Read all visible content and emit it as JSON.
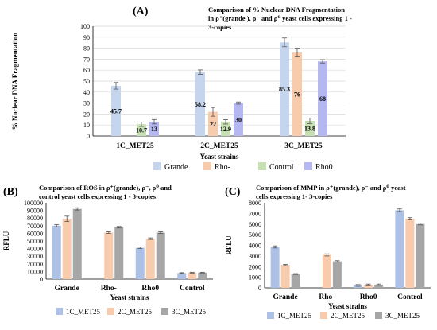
{
  "colors": {
    "grande": "#c5d5ee",
    "rho_minus": "#f8cbad",
    "control": "#c6e0b4",
    "rho0": "#b4b7f0",
    "met1": "#adc0e6",
    "met2": "#f8cbad",
    "met3": "#a6a6a6"
  },
  "chart_data": [
    {
      "id": "A",
      "type": "bar",
      "panel_label": "(A)",
      "title_lines": [
        "Comparison of % Nuclear DNA Fragmentation",
        "in ρ⁺(grande ), ρ⁻ and ρ⁰ yeast cells expressing 1 -",
        "3-copies"
      ],
      "categories": [
        "1C_MET25",
        "2C_MET25",
        "3C_MET25"
      ],
      "series": [
        {
          "name": "Grande",
          "values": [
            45.7,
            58.2,
            85.3
          ],
          "errors": [
            3,
            2,
            4
          ]
        },
        {
          "name": "Rho-",
          "values": [
            null,
            22,
            76
          ],
          "errors": [
            0,
            4,
            4
          ]
        },
        {
          "name": "Control",
          "values": [
            10.7,
            12.9,
            13.8
          ],
          "errors": [
            2,
            2,
            2.5
          ]
        },
        {
          "name": "Rho0",
          "values": [
            13,
            30,
            68
          ],
          "errors": [
            2,
            1,
            1.5
          ]
        }
      ],
      "data_labels": [
        [
          "45.7",
          "",
          "10.7",
          "13"
        ],
        [
          "58.2",
          "22",
          "12.9",
          "30"
        ],
        [
          "85.3",
          "76",
          "13.8",
          "68"
        ]
      ],
      "ylabel": "% Nuclear DNA Fragmentation",
      "xlabel": "Yeast strains",
      "ylim": [
        0,
        100
      ],
      "yticks": [
        "0",
        "10",
        "20",
        "30",
        "40",
        "50",
        "60",
        "70",
        "80",
        "90",
        "100"
      ],
      "legend_placement": "bottom"
    },
    {
      "id": "B",
      "type": "bar",
      "panel_label": "(B)",
      "title_lines": [
        "Comparison of ROS in  ρ⁺(grande), ρ⁻, ρ⁰ and",
        "control yeast cells expressing 1 - 3-copies"
      ],
      "categories": [
        "Grande",
        "Rho-",
        "Rho0",
        "Control"
      ],
      "series": [
        {
          "name": "1C_MET25",
          "values": [
            70000,
            null,
            41000,
            8000
          ],
          "errors": [
            1500,
            0,
            1000,
            500
          ]
        },
        {
          "name": "2C_MET25",
          "values": [
            79000,
            61000,
            53000,
            8500
          ],
          "errors": [
            3500,
            1000,
            1000,
            500
          ]
        },
        {
          "name": "3C_MET25",
          "values": [
            92000,
            68000,
            61000,
            8500
          ],
          "errors": [
            1500,
            1000,
            1000,
            500
          ]
        }
      ],
      "ylabel": "RFLU",
      "xlabel": "Yeast strains",
      "ylim": [
        0,
        100000
      ],
      "yticks": [
        "0",
        "10000",
        "20000",
        "30000",
        "40000",
        "50000",
        "60000",
        "70000",
        "80000",
        "90000",
        "100000"
      ],
      "legend_placement": "bottom"
    },
    {
      "id": "C",
      "type": "bar",
      "panel_label": "(C)",
      "title_lines": [
        "Comparison of MMP in  ρ⁺(grande), ρ⁻ and ρ⁰ yeast",
        "cells expressing  1- 3-copies"
      ],
      "categories": [
        "Grande",
        "Rho-",
        "Rho0",
        "Control"
      ],
      "series": [
        {
          "name": "1C_MET25",
          "values": [
            3850,
            null,
            230,
            7300
          ],
          "errors": [
            100,
            0,
            80,
            120
          ]
        },
        {
          "name": "2C_MET25",
          "values": [
            2150,
            3100,
            280,
            6500
          ],
          "errors": [
            60,
            100,
            80,
            100
          ]
        },
        {
          "name": "3C_MET25",
          "values": [
            1300,
            2500,
            300,
            6000
          ],
          "errors": [
            40,
            60,
            60,
            80
          ]
        }
      ],
      "ylabel": "RFLU",
      "xlabel": "Yeast strains",
      "ylim": [
        0,
        8000
      ],
      "yticks": [
        "0",
        "1000",
        "2000",
        "3000",
        "4000",
        "5000",
        "6000",
        "7000",
        "8000"
      ],
      "legend_placement": "bottom"
    }
  ]
}
